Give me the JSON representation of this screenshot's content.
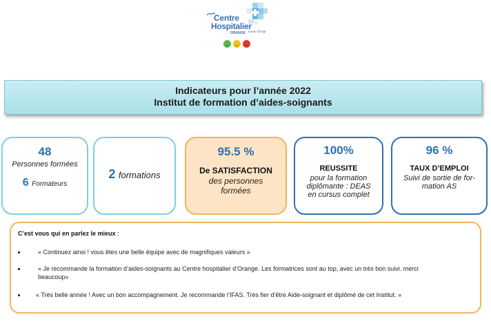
{
  "logo": {
    "name_line1": "Centre",
    "name_line2": "Hospitalier",
    "name_line3": "ORANGE",
    "signature": "Louis Giorgi"
  },
  "header": {
    "title_line1": "Indicateurs pour l’année 2022",
    "title_line2": "Institut de formation d’aides-soignants"
  },
  "stats": {
    "trained": {
      "value": "48",
      "label": "Personnes formées"
    },
    "trainers": {
      "value": "6",
      "label": "Formateurs"
    },
    "formations": {
      "value": "2",
      "label": "formations"
    },
    "satisfaction": {
      "value": "95.5 %",
      "label_bold": "De SATISFACTION",
      "label_line1": "des personnes",
      "label_line2": "formées"
    },
    "success": {
      "value": "100%",
      "label_bold": "REUSSITE",
      "line1": "pour la formation",
      "line2": "diplômante : DEAS",
      "line3": "en cursus complet"
    },
    "employment": {
      "value": "96 %",
      "label_bold": "TAUX D’EMPLOI",
      "line1": "Suivi de sortie de for-",
      "line2": "mation AS"
    }
  },
  "testimonials": {
    "title_bold": "C’est vous qui en parlez le mieux",
    "title_tail": " :",
    "quotes": [
      "« Continuez ainsi ! vous êtes une belle équipe avec de magnifiques valeurs »",
      "« Je recommande la formation d’aides-soignants au Centre hospitalier d’Orange.  Les formatrices sont au top, avec un très bon suivi. merci",
      "beaucoup»",
      "« Très belle année !  Avec un bon accompagnement. Je recommande l’IFAS. Très fier d’être Aide-soignant et diplômé de cet Institut. »"
    ]
  },
  "colors": {
    "accent_blue": "#2f6fb0",
    "banner_teal": "#a9e0e8",
    "orange_border": "#f2b35f",
    "satisfaction_fill": "#fde4c6"
  }
}
